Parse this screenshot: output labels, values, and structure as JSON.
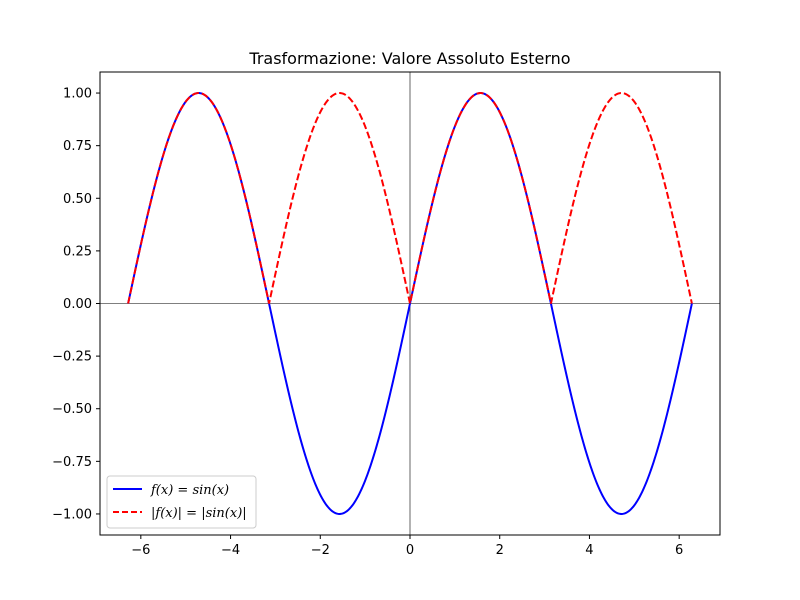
{
  "chart_data": {
    "type": "line",
    "title": "Trasformazione: Valore Assoluto Esterno",
    "xlabel": "",
    "ylabel": "",
    "xlim": [
      -6.91,
      6.91
    ],
    "ylim": [
      -1.1,
      1.1
    ],
    "x_ticks": [
      -6,
      -4,
      -2,
      0,
      2,
      4,
      6
    ],
    "x_tick_labels": [
      "−6",
      "−4",
      "−2",
      "0",
      "2",
      "4",
      "6"
    ],
    "y_ticks": [
      -1.0,
      -0.75,
      -0.5,
      -0.25,
      0.0,
      0.25,
      0.5,
      0.75,
      1.0
    ],
    "y_tick_labels": [
      "−1.00",
      "−0.75",
      "−0.50",
      "−0.25",
      "0.00",
      "0.25",
      "0.50",
      "0.75",
      "1.00"
    ],
    "x_range": [
      -6.283,
      6.283
    ],
    "grid": false,
    "reference_lines": [
      "y=0",
      "x=0"
    ],
    "legend_position": "lower-left",
    "series": [
      {
        "name": "f(x) = sin(x)",
        "function": "sin(x)",
        "color": "#0000ff",
        "style": "solid"
      },
      {
        "name": "|f(x)| = |sin(x)|",
        "function": "|sin(x)|",
        "color": "#ff0000",
        "style": "dashed"
      }
    ]
  }
}
